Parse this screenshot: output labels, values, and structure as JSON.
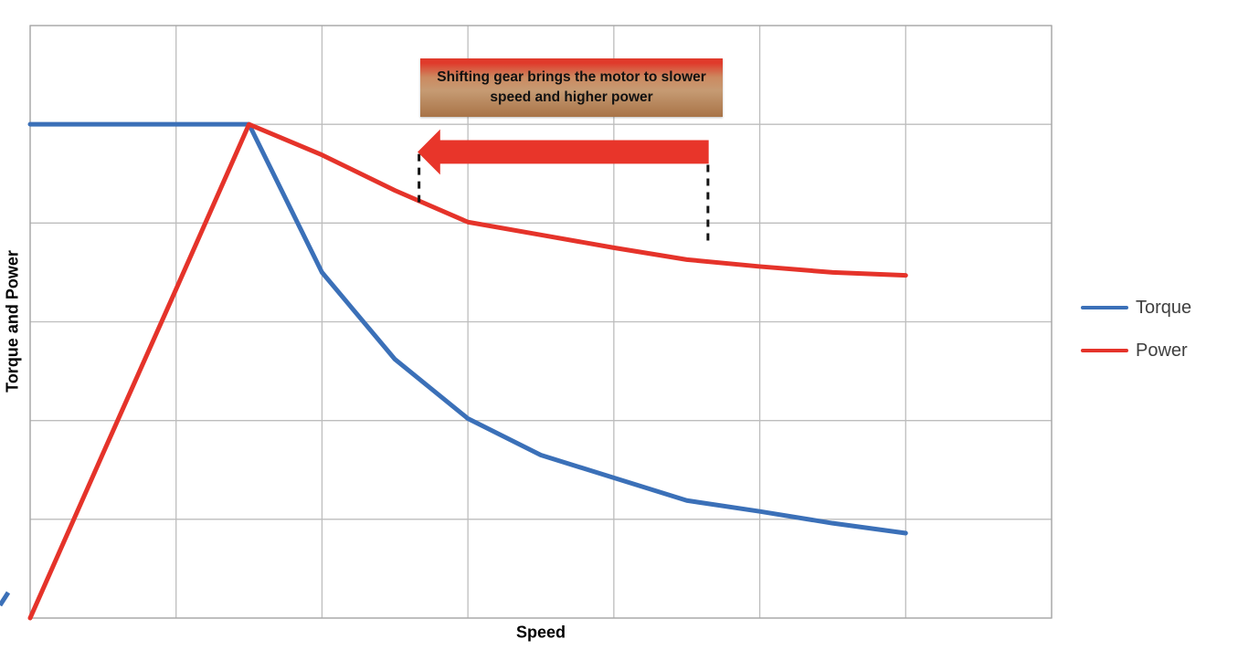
{
  "chart_data": {
    "type": "line",
    "title": "",
    "xlabel": "Speed",
    "ylabel": "Torque and Power",
    "x": [
      0,
      1,
      2,
      3,
      4,
      5,
      6,
      7,
      8,
      9,
      10,
      11,
      12
    ],
    "series": [
      {
        "name": "Torque",
        "color": "#3B70B8",
        "values": [
          5,
          5,
          5,
          5,
          3.5,
          2.62,
          2.02,
          1.65,
          1.42,
          1.19,
          1.08,
          0.96,
          0.86
        ]
      },
      {
        "name": "Power",
        "color": "#E5332A",
        "values": [
          0,
          1.67,
          3.33,
          5,
          4.69,
          4.33,
          4.01,
          3.88,
          3.75,
          3.63,
          3.56,
          3.5,
          3.47
        ]
      }
    ],
    "xlim": [
      0,
      14
    ],
    "ylim": [
      0,
      6
    ],
    "x_grid_step": 2,
    "y_grid_step": 1,
    "grid": true,
    "tick_labels": "none",
    "legend_position": "right-middle",
    "grid_color": "#BDBDBD",
    "border_color": "#A6A6A6",
    "line_width": 5,
    "annotations": {
      "callout": {
        "text": "Shifting gear brings the motor to slower speed and higher power",
        "from_speed": 5.35,
        "to_speed": 9.49,
        "top_value": 5.67,
        "bottom_value": 5.08,
        "gradient": [
          "#E03A2B",
          "#CC8960",
          "#C69B73",
          "#A87347"
        ],
        "text_color": "#111111"
      },
      "arrow": {
        "direction": "left",
        "from_speed": 9.3,
        "to_speed": 5.31,
        "value": 4.72,
        "body_half_height_value": 0.12,
        "head_half_height_value": 0.23,
        "head_length_speed": 0.31,
        "color": "#E8352A"
      },
      "dashed_markers": [
        {
          "speed": 5.33,
          "from_value": 4.7,
          "to_value": 4.21
        },
        {
          "speed": 9.29,
          "from_value": 4.59,
          "to_value": 3.76
        }
      ],
      "dash_color": "#141414"
    }
  }
}
